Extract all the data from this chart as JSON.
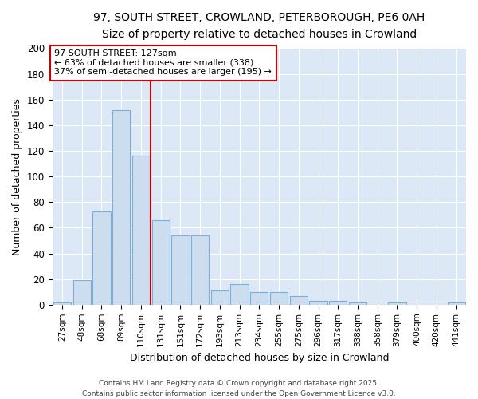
{
  "title_line1": "97, SOUTH STREET, CROWLAND, PETERBOROUGH, PE6 0AH",
  "title_line2": "Size of property relative to detached houses in Crowland",
  "xlabel": "Distribution of detached houses by size in Crowland",
  "ylabel": "Number of detached properties",
  "categories": [
    "27sqm",
    "48sqm",
    "68sqm",
    "89sqm",
    "110sqm",
    "131sqm",
    "151sqm",
    "172sqm",
    "193sqm",
    "213sqm",
    "234sqm",
    "255sqm",
    "275sqm",
    "296sqm",
    "317sqm",
    "338sqm",
    "358sqm",
    "379sqm",
    "400sqm",
    "420sqm",
    "441sqm"
  ],
  "values": [
    2,
    19,
    73,
    152,
    116,
    66,
    54,
    54,
    11,
    16,
    10,
    10,
    7,
    3,
    3,
    2,
    0,
    2,
    0,
    0,
    2
  ],
  "bar_color": "#ccddf0",
  "bar_edge_color": "#7bafd4",
  "vline_x": 4.5,
  "vline_color": "#cc0000",
  "annotation_text": "97 SOUTH STREET: 127sqm\n← 63% of detached houses are smaller (338)\n37% of semi-detached houses are larger (195) →",
  "annotation_box_color": "#ffffff",
  "annotation_box_edge": "#cc0000",
  "ylim": [
    0,
    200
  ],
  "yticks": [
    0,
    20,
    40,
    60,
    80,
    100,
    120,
    140,
    160,
    180,
    200
  ],
  "plot_bg_color": "#dce8f5",
  "fig_bg_color": "#ffffff",
  "grid_color": "#ffffff",
  "footer_line1": "Contains HM Land Registry data © Crown copyright and database right 2025.",
  "footer_line2": "Contains public sector information licensed under the Open Government Licence v3.0."
}
